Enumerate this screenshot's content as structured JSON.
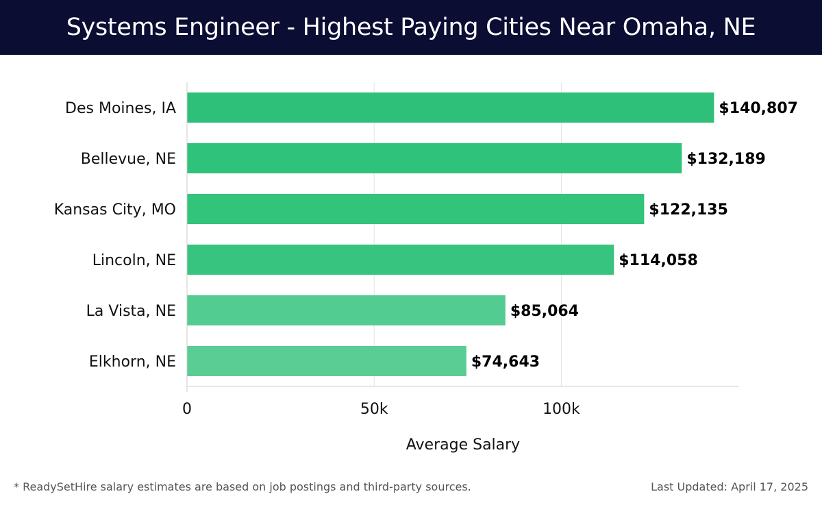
{
  "header": {
    "title": "Systems Engineer - Highest Paying Cities Near Omaha, NE"
  },
  "chart_data": {
    "type": "bar",
    "orientation": "horizontal",
    "title": "Systems Engineer - Highest Paying Cities Near Omaha, NE",
    "categories": [
      "Des Moines, IA",
      "Bellevue, NE",
      "Kansas City, MO",
      "Lincoln, NE",
      "La Vista, NE",
      "Elkhorn, NE"
    ],
    "values": [
      140807,
      132189,
      122135,
      114058,
      85064,
      74643
    ],
    "value_labels": [
      "$140,807",
      "$132,189",
      "$122,135",
      "$114,058",
      "$85,064",
      "$74,643"
    ],
    "bar_colors": [
      "#2ebf78",
      "#2fc27a",
      "#33c47c",
      "#36c47e",
      "#52cc90",
      "#5acd94"
    ],
    "xlabel": "Average Salary",
    "ylabel": "",
    "xlim": [
      0,
      147500
    ],
    "xticks": [
      0,
      50000,
      100000
    ],
    "xtick_labels": [
      "0",
      "50k",
      "100k"
    ],
    "grid": true
  },
  "footer": {
    "note": "* ReadySetHire salary estimates are based on job postings and third-party sources.",
    "updated": "Last Updated: April 17, 2025"
  }
}
